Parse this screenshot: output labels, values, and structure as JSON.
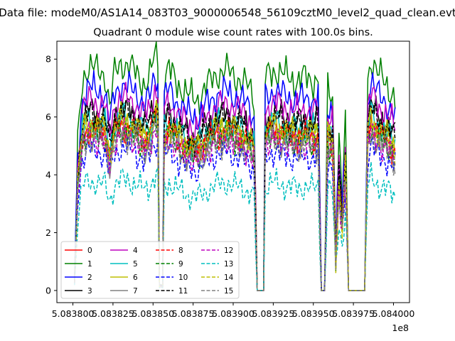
{
  "suptitle": "Data file: modeM0/AS1A14_083T03_9000006548_56109cztM0_level2_quad_clean.evt",
  "chart_data": {
    "type": "line",
    "title": "Quadrant 0 module wise count rates with 100.0s bins.",
    "xlabel": "",
    "ylabel": "",
    "x_offset_label": "1e8",
    "xlim": [
      5.08379,
      5.08401
    ],
    "ylim": [
      -0.42,
      8.62
    ],
    "x_ticks": [
      5.0838,
      5.083825,
      5.08385,
      5.083875,
      5.0839,
      5.083925,
      5.08395,
      5.083975,
      5.084
    ],
    "x_tick_labels": [
      "5.083800",
      "5.083825",
      "5.083850",
      "5.083875",
      "5.083900",
      "5.083925",
      "5.083950",
      "5.083975",
      "5.084000"
    ],
    "y_ticks": [
      0,
      2,
      4,
      6,
      8
    ],
    "y_tick_labels": [
      "0",
      "2",
      "4",
      "6",
      "8"
    ],
    "grid": false,
    "legend_location": "lower-left",
    "legend_columns": 4,
    "x_range": [
      5.083801,
      5.084001
    ],
    "envelope": [
      [
        5.083801,
        0.3
      ],
      [
        5.083803,
        4.0
      ],
      [
        5.083806,
        5.8
      ],
      [
        5.08381,
        6.1
      ],
      [
        5.083815,
        6.0
      ],
      [
        5.08382,
        5.9
      ],
      [
        5.083823,
        5.0
      ],
      [
        5.083826,
        5.9
      ],
      [
        5.08383,
        6.2
      ],
      [
        5.083835,
        6.1
      ],
      [
        5.08384,
        5.9
      ],
      [
        5.083845,
        5.6
      ],
      [
        5.083848,
        5.8
      ],
      [
        5.083851,
        6.4
      ],
      [
        5.083853,
        6.4
      ],
      [
        5.083854,
        0.15
      ],
      [
        5.083856,
        0.15
      ],
      [
        5.083857,
        5.8
      ],
      [
        5.08386,
        6.0
      ],
      [
        5.083866,
        5.6
      ],
      [
        5.083872,
        5.3
      ],
      [
        5.083878,
        5.2
      ],
      [
        5.083884,
        5.6
      ],
      [
        5.08389,
        5.9
      ],
      [
        5.083896,
        6.0
      ],
      [
        5.083902,
        5.8
      ],
      [
        5.083906,
        5.7
      ],
      [
        5.08391,
        5.5
      ],
      [
        5.083913,
        5.2
      ],
      [
        5.083915,
        0.0
      ],
      [
        5.083919,
        0.0
      ],
      [
        5.08392,
        5.8
      ],
      [
        5.083925,
        6.0
      ],
      [
        5.08393,
        5.9
      ],
      [
        5.083935,
        5.8
      ],
      [
        5.08394,
        5.7
      ],
      [
        5.083945,
        5.8
      ],
      [
        5.08395,
        5.7
      ],
      [
        5.083953,
        5.8
      ],
      [
        5.083955,
        0.0
      ],
      [
        5.083957,
        0.0
      ],
      [
        5.083959,
        5.6
      ],
      [
        5.083962,
        5.4
      ],
      [
        5.083964,
        1.2
      ],
      [
        5.083966,
        4.0
      ],
      [
        5.083968,
        2.4
      ],
      [
        5.08397,
        4.6
      ],
      [
        5.083972,
        0.0
      ],
      [
        5.083974,
        0.0
      ],
      [
        5.083976,
        0.0
      ],
      [
        5.083978,
        0.0
      ],
      [
        5.08398,
        0.0
      ],
      [
        5.083982,
        0.0
      ],
      [
        5.083984,
        5.8
      ],
      [
        5.083986,
        6.3
      ],
      [
        5.08399,
        5.9
      ],
      [
        5.083995,
        5.7
      ],
      [
        5.084001,
        5.2
      ]
    ],
    "series": [
      {
        "name": "0",
        "color": "#ff0000",
        "dash": "solid",
        "scale": 0.93,
        "phase": 0.3
      },
      {
        "name": "1",
        "color": "#008000",
        "dash": "solid",
        "scale": 1.27,
        "phase": 1.1
      },
      {
        "name": "2",
        "color": "#0000ff",
        "dash": "solid",
        "scale": 1.15,
        "phase": 2.0
      },
      {
        "name": "3",
        "color": "#000000",
        "dash": "solid",
        "scale": 1.02,
        "phase": 2.7
      },
      {
        "name": "4",
        "color": "#bf00bf",
        "dash": "solid",
        "scale": 1.08,
        "phase": 3.5
      },
      {
        "name": "5",
        "color": "#00bfbf",
        "dash": "solid",
        "scale": 0.97,
        "phase": 4.2
      },
      {
        "name": "6",
        "color": "#bfbf00",
        "dash": "solid",
        "scale": 0.95,
        "phase": 5.0
      },
      {
        "name": "7",
        "color": "#808080",
        "dash": "solid",
        "scale": 0.88,
        "phase": 5.8
      },
      {
        "name": "8",
        "color": "#ff0000",
        "dash": "dashed",
        "scale": 0.92,
        "phase": 0.7
      },
      {
        "name": "9",
        "color": "#008000",
        "dash": "dashed",
        "scale": 0.9,
        "phase": 1.5
      },
      {
        "name": "10",
        "color": "#0000ff",
        "dash": "dashed",
        "scale": 0.8,
        "phase": 2.3
      },
      {
        "name": "11",
        "color": "#000000",
        "dash": "dashed",
        "scale": 1.0,
        "phase": 3.1
      },
      {
        "name": "12",
        "color": "#bf00bf",
        "dash": "dashed",
        "scale": 0.87,
        "phase": 3.9
      },
      {
        "name": "13",
        "color": "#00bfbf",
        "dash": "dashed",
        "scale": 0.62,
        "phase": 4.6
      },
      {
        "name": "14",
        "color": "#bfbf00",
        "dash": "dashed",
        "scale": 0.94,
        "phase": 5.4
      },
      {
        "name": "15",
        "color": "#808080",
        "dash": "dashed",
        "scale": 0.86,
        "phase": 6.1
      }
    ]
  }
}
